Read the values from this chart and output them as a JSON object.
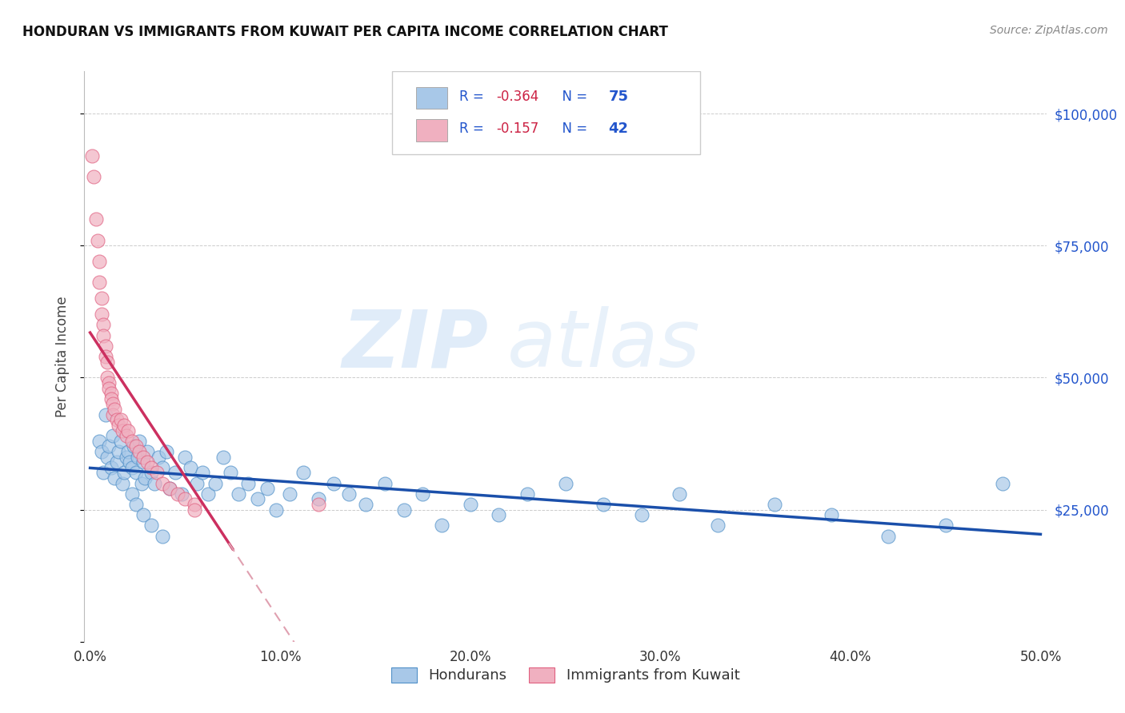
{
  "title": "HONDURAN VS IMMIGRANTS FROM KUWAIT PER CAPITA INCOME CORRELATION CHART",
  "source": "Source: ZipAtlas.com",
  "ylabel": "Per Capita Income",
  "yticks": [
    0,
    25000,
    50000,
    75000,
    100000
  ],
  "ytick_labels": [
    "",
    "$25,000",
    "$50,000",
    "$75,000",
    "$100,000"
  ],
  "legend_labels_bottom": [
    "Hondurans",
    "Immigrants from Kuwait"
  ],
  "blue_scatter_face": "#a8c8e8",
  "blue_scatter_edge": "#5090c8",
  "pink_scatter_face": "#f0b0c0",
  "pink_scatter_edge": "#e06080",
  "trendline_blue": "#1a4faa",
  "trendline_pink": "#cc3060",
  "trendline_dashed": "#e0a0b0",
  "grid_color": "#cccccc",
  "background": "#ffffff",
  "right_label_color": "#2255cc",
  "legend_text_color": "#2255cc",
  "legend_R_color": "#2255cc",
  "R_blue": "-0.364",
  "N_blue": "75",
  "R_pink": "-0.157",
  "N_pink": "42",
  "hondurans_x": [
    0.005,
    0.006,
    0.007,
    0.008,
    0.009,
    0.01,
    0.011,
    0.012,
    0.013,
    0.014,
    0.015,
    0.016,
    0.017,
    0.018,
    0.019,
    0.02,
    0.021,
    0.022,
    0.023,
    0.024,
    0.025,
    0.026,
    0.027,
    0.028,
    0.029,
    0.03,
    0.032,
    0.034,
    0.036,
    0.038,
    0.04,
    0.042,
    0.045,
    0.048,
    0.05,
    0.053,
    0.056,
    0.059,
    0.062,
    0.066,
    0.07,
    0.074,
    0.078,
    0.083,
    0.088,
    0.093,
    0.098,
    0.105,
    0.112,
    0.12,
    0.128,
    0.136,
    0.145,
    0.155,
    0.165,
    0.175,
    0.185,
    0.2,
    0.215,
    0.23,
    0.25,
    0.27,
    0.29,
    0.31,
    0.33,
    0.36,
    0.39,
    0.42,
    0.45,
    0.48,
    0.022,
    0.024,
    0.028,
    0.032,
    0.038
  ],
  "hondurans_y": [
    38000,
    36000,
    32000,
    43000,
    35000,
    37000,
    33000,
    39000,
    31000,
    34000,
    36000,
    38000,
    30000,
    32000,
    35000,
    36000,
    34000,
    33000,
    37000,
    32000,
    35000,
    38000,
    30000,
    34000,
    31000,
    36000,
    32000,
    30000,
    35000,
    33000,
    36000,
    29000,
    32000,
    28000,
    35000,
    33000,
    30000,
    32000,
    28000,
    30000,
    35000,
    32000,
    28000,
    30000,
    27000,
    29000,
    25000,
    28000,
    32000,
    27000,
    30000,
    28000,
    26000,
    30000,
    25000,
    28000,
    22000,
    26000,
    24000,
    28000,
    30000,
    26000,
    24000,
    28000,
    22000,
    26000,
    24000,
    20000,
    22000,
    30000,
    28000,
    26000,
    24000,
    22000,
    20000
  ],
  "kuwait_x": [
    0.001,
    0.002,
    0.003,
    0.004,
    0.005,
    0.005,
    0.006,
    0.006,
    0.007,
    0.007,
    0.008,
    0.008,
    0.009,
    0.009,
    0.01,
    0.01,
    0.011,
    0.011,
    0.012,
    0.012,
    0.013,
    0.014,
    0.015,
    0.016,
    0.017,
    0.018,
    0.019,
    0.02,
    0.022,
    0.024,
    0.026,
    0.028,
    0.03,
    0.032,
    0.035,
    0.038,
    0.042,
    0.046,
    0.05,
    0.055,
    0.055,
    0.12
  ],
  "kuwait_y": [
    92000,
    88000,
    80000,
    76000,
    72000,
    68000,
    65000,
    62000,
    60000,
    58000,
    56000,
    54000,
    53000,
    50000,
    49000,
    48000,
    47000,
    46000,
    45000,
    43000,
    44000,
    42000,
    41000,
    42000,
    40000,
    41000,
    39000,
    40000,
    38000,
    37000,
    36000,
    35000,
    34000,
    33000,
    32000,
    30000,
    29000,
    28000,
    27000,
    26000,
    25000,
    26000
  ],
  "xlim": [
    -0.003,
    0.503
  ],
  "ylim": [
    0,
    108000
  ],
  "xticks": [
    0.0,
    0.1,
    0.2,
    0.3,
    0.4,
    0.5
  ],
  "xtick_labels": [
    "0.0%",
    "10.0%",
    "20.0%",
    "30.0%",
    "40.0%",
    "50.0%"
  ],
  "pink_trendline_x_end_solid": 0.075,
  "pink_trendline_x_start_dash": 0.073,
  "pink_trendline_x_end_dash": 0.503
}
